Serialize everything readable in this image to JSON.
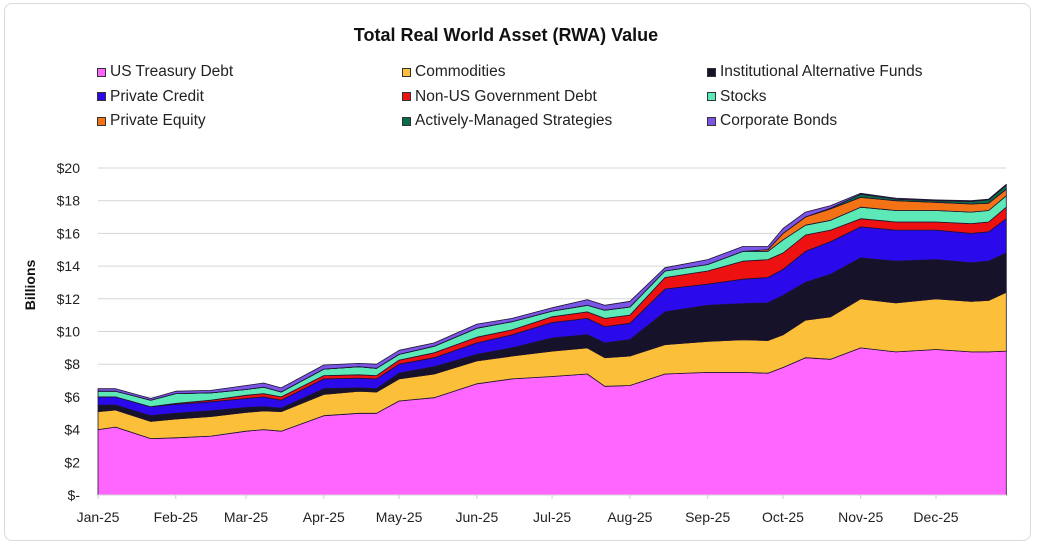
{
  "chart_data": {
    "type": "area",
    "stacked": true,
    "title": "Total Real World Asset (RWA) Value",
    "xlabel": "",
    "ylabel": "Billions",
    "ylim": [
      0,
      20
    ],
    "y_ticks": [
      "$-",
      "$2",
      "$4",
      "$6",
      "$8",
      "$10",
      "$12",
      "$14",
      "$16",
      "$18",
      "$20"
    ],
    "x_ticks": [
      "Jan-25",
      "Feb-25",
      "Mar-25",
      "Apr-25",
      "May-25",
      "Jun-25",
      "Jul-25",
      "Aug-25",
      "Sep-25",
      "Oct-25",
      "Nov-25",
      "Dec-25"
    ],
    "grid": "horizontal",
    "legend_position": "top",
    "x": [
      "2025-01-01",
      "2025-01-08",
      "2025-01-22",
      "2025-02-01",
      "2025-02-15",
      "2025-03-01",
      "2025-03-08",
      "2025-03-15",
      "2025-04-01",
      "2025-04-15",
      "2025-04-22",
      "2025-05-01",
      "2025-05-15",
      "2025-06-01",
      "2025-06-15",
      "2025-07-01",
      "2025-07-15",
      "2025-07-22",
      "2025-08-01",
      "2025-08-15",
      "2025-09-01",
      "2025-09-15",
      "2025-09-25",
      "2025-10-01",
      "2025-10-10",
      "2025-10-20",
      "2025-11-01",
      "2025-11-15",
      "2025-12-01",
      "2025-12-15",
      "2025-12-22",
      "2025-12-29"
    ],
    "series": [
      {
        "name": "US Treasury Debt",
        "color": "#ff66ff",
        "values": [
          4.0,
          4.15,
          3.45,
          3.5,
          3.6,
          3.9,
          4.0,
          3.9,
          4.85,
          5.0,
          5.0,
          5.75,
          5.95,
          6.8,
          7.1,
          7.25,
          7.4,
          6.65,
          6.7,
          7.4,
          7.5,
          7.5,
          7.45,
          7.8,
          8.4,
          8.3,
          9.0,
          8.75,
          8.9,
          8.75,
          8.75,
          8.8
        ]
      },
      {
        "name": "Commodities",
        "color": "#fbbf3a",
        "values": [
          1.1,
          1.05,
          1.05,
          1.15,
          1.2,
          1.15,
          1.15,
          1.2,
          1.3,
          1.35,
          1.3,
          1.35,
          1.45,
          1.4,
          1.4,
          1.55,
          1.6,
          1.75,
          1.8,
          1.8,
          1.9,
          2.0,
          2.0,
          2.0,
          2.3,
          2.6,
          3.0,
          3.0,
          3.1,
          3.1,
          3.15,
          3.6
        ]
      },
      {
        "name": "Institutional Alternative Funds",
        "color": "#161229",
        "values": [
          0.4,
          0.3,
          0.35,
          0.35,
          0.35,
          0.3,
          0.25,
          0.2,
          0.35,
          0.2,
          0.2,
          0.35,
          0.45,
          0.4,
          0.5,
          0.8,
          0.8,
          0.9,
          1.0,
          2.0,
          2.2,
          2.2,
          2.3,
          2.4,
          2.3,
          2.6,
          2.5,
          2.55,
          2.4,
          2.35,
          2.4,
          2.4
        ]
      },
      {
        "name": "Private Credit",
        "color": "#2a0aeb",
        "values": [
          0.5,
          0.5,
          0.55,
          0.55,
          0.55,
          0.55,
          0.6,
          0.5,
          0.6,
          0.6,
          0.6,
          0.55,
          0.55,
          0.7,
          0.8,
          0.95,
          1.0,
          1.0,
          1.0,
          1.4,
          1.3,
          1.5,
          1.55,
          1.6,
          1.9,
          2.0,
          1.9,
          1.9,
          1.8,
          1.8,
          1.8,
          2.1
        ]
      },
      {
        "name": "Non-US Government Debt",
        "color": "#ee1111",
        "values": [
          0,
          0,
          0,
          0.05,
          0.1,
          0.2,
          0.2,
          0.2,
          0.2,
          0.2,
          0.2,
          0.25,
          0.3,
          0.35,
          0.3,
          0.35,
          0.4,
          0.5,
          0.5,
          0.7,
          0.8,
          1.1,
          1.1,
          1.0,
          1.0,
          0.7,
          0.5,
          0.5,
          0.5,
          0.6,
          0.6,
          0.7
        ]
      },
      {
        "name": "Stocks",
        "color": "#5de8b8",
        "values": [
          0.35,
          0.35,
          0.4,
          0.6,
          0.45,
          0.35,
          0.4,
          0.3,
          0.4,
          0.5,
          0.45,
          0.35,
          0.4,
          0.55,
          0.5,
          0.35,
          0.4,
          0.5,
          0.5,
          0.4,
          0.4,
          0.6,
          0.5,
          0.8,
          0.6,
          0.6,
          0.7,
          0.7,
          0.7,
          0.7,
          0.7,
          0.7
        ]
      },
      {
        "name": "Private Equity",
        "color": "#f47216",
        "values": [
          0,
          0,
          0,
          0,
          0,
          0,
          0,
          0,
          0,
          0,
          0,
          0,
          0,
          0,
          0,
          0,
          0,
          0,
          0,
          0,
          0,
          0,
          0.1,
          0.4,
          0.5,
          0.7,
          0.6,
          0.6,
          0.5,
          0.5,
          0.45,
          0.4
        ]
      },
      {
        "name": "Actively-Managed Strategies",
        "color": "#0a6b4a",
        "values": [
          0,
          0,
          0,
          0,
          0,
          0,
          0,
          0,
          0,
          0,
          0,
          0,
          0,
          0,
          0,
          0,
          0,
          0,
          0,
          0,
          0,
          0,
          0,
          0,
          0,
          0.05,
          0.2,
          0.1,
          0.1,
          0.15,
          0.2,
          0.25
        ]
      },
      {
        "name": "Corporate Bonds",
        "color": "#7a55e6",
        "values": [
          0.15,
          0.15,
          0.1,
          0.15,
          0.15,
          0.25,
          0.25,
          0.25,
          0.25,
          0.2,
          0.25,
          0.25,
          0.2,
          0.25,
          0.2,
          0.2,
          0.35,
          0.3,
          0.35,
          0.2,
          0.3,
          0.3,
          0.2,
          0.3,
          0.3,
          0.15,
          0.05,
          0.05,
          0.05,
          0.05,
          0.05,
          0.05
        ]
      }
    ]
  }
}
